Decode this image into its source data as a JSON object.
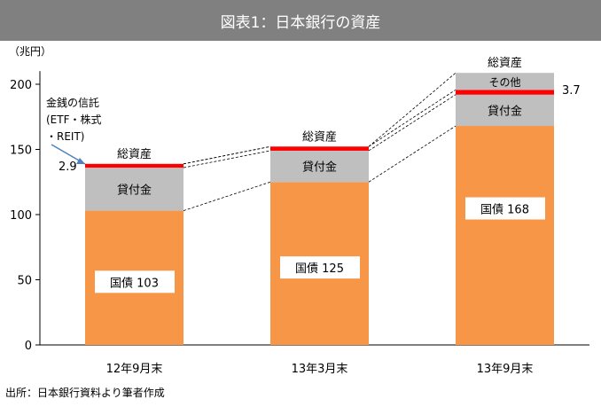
{
  "title": "図表1：日本銀行の資産",
  "source": "出所：日本銀行資料より筆者作成",
  "colors": {
    "title_bg": "#808080",
    "jgb": "#F79646",
    "loans": "#BFBFBF",
    "trust": "#FF0000",
    "other": "#BFBFBF"
  },
  "chart_data": {
    "type": "bar",
    "stacked": true,
    "ylabel": "（兆円）",
    "ylim": [
      0,
      210
    ],
    "yticks": [
      0,
      50,
      100,
      150,
      200
    ],
    "categories": [
      "12年9月末",
      "13年3月末",
      "13年9月末"
    ],
    "series": [
      {
        "name": "国債",
        "values": [
          103,
          125,
          168
        ]
      },
      {
        "name": "貸付金",
        "values": [
          33,
          24,
          24
        ]
      },
      {
        "name": "金銭の信託(ETF・株式・REIT)",
        "values": [
          2.9,
          3.2,
          3.7
        ]
      },
      {
        "name": "その他",
        "values": [
          0,
          0,
          13
        ]
      }
    ],
    "bar_labels": [
      {
        "jgb": "国債 103",
        "loans": "貸付金",
        "total": "総資産",
        "other": ""
      },
      {
        "jgb": "国債 125",
        "loans": "貸付金",
        "total": "総資産",
        "other": ""
      },
      {
        "jgb": "国債 168",
        "loans": "貸付金",
        "total": "総資産",
        "other": "その他"
      }
    ],
    "annotations": {
      "trust_label_lines": [
        "金銭の信託",
        "(ETF・株式",
        "・REIT)"
      ],
      "trust_value_first": "2.9",
      "trust_value_last": "3.7"
    },
    "grid": false,
    "connector_lines": "dashed"
  }
}
